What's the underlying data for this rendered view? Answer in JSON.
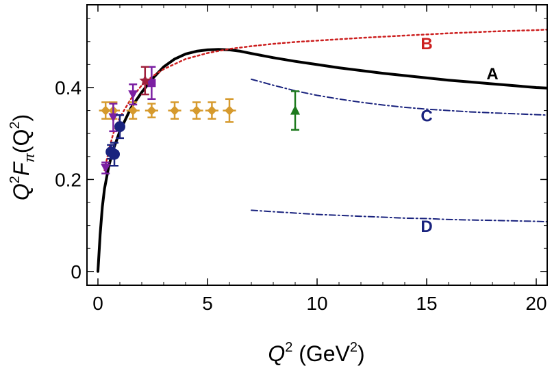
{
  "chart_data": {
    "type": "line",
    "xlabel": {
      "main": "Q",
      "sup": "2",
      "rest": " (GeV",
      "unit_sup": "2",
      "close": ")"
    },
    "ylabel": {
      "sup": "2",
      "f": "F",
      "sub": "π",
      "arg": "(Q",
      "arg_sup": "2",
      "close": ")"
    },
    "xlim": [
      -0.5,
      20.5
    ],
    "ylim": [
      -0.03,
      0.58
    ],
    "x_ticks": [
      0,
      5,
      10,
      15,
      20
    ],
    "x_tick_labels": [
      "0",
      "5",
      "10",
      "15",
      "20"
    ],
    "y_ticks": [
      0,
      0.2,
      0.4
    ],
    "y_tick_labels": [
      "0",
      "0.2",
      "0.4"
    ],
    "colors": {
      "A": "#000000",
      "B": "#cc1f1f",
      "C": "#1a237e",
      "D": "#1a237e",
      "gold": "#d69a2d",
      "purple": "#7b1fa2",
      "navy": "#1a237e",
      "darkred": "#a0203c",
      "green": "#1e7a1e"
    },
    "series": [
      {
        "name": "A",
        "style": "solid",
        "x": [
          0,
          0.1,
          0.2,
          0.3,
          0.5,
          0.7,
          1,
          1.5,
          2,
          2.5,
          3,
          3.5,
          4,
          4.5,
          5,
          5.5,
          6,
          6.5,
          7,
          8,
          9,
          10,
          11,
          12,
          13,
          14,
          15,
          16,
          17,
          18,
          19,
          20,
          20.5
        ],
        "y": [
          0,
          0.08,
          0.14,
          0.18,
          0.23,
          0.265,
          0.305,
          0.355,
          0.39,
          0.42,
          0.445,
          0.462,
          0.473,
          0.479,
          0.482,
          0.483,
          0.482,
          0.479,
          0.474,
          0.465,
          0.457,
          0.45,
          0.443,
          0.437,
          0.431,
          0.426,
          0.421,
          0.416,
          0.412,
          0.408,
          0.404,
          0.4,
          0.399
        ]
      },
      {
        "name": "B",
        "style": "dotted",
        "x": [
          0.3,
          0.5,
          0.7,
          1,
          1.5,
          2,
          2.5,
          3,
          4,
          5,
          6,
          7,
          8,
          9,
          10,
          12,
          14,
          16,
          18,
          20,
          20.5
        ],
        "y": [
          0.22,
          0.265,
          0.3,
          0.335,
          0.375,
          0.405,
          0.425,
          0.44,
          0.462,
          0.475,
          0.484,
          0.49,
          0.495,
          0.499,
          0.502,
          0.508,
          0.513,
          0.518,
          0.522,
          0.525,
          0.526
        ]
      },
      {
        "name": "C",
        "style": "dashdot",
        "x": [
          7,
          8,
          9,
          10,
          11,
          12,
          13,
          14,
          15,
          16,
          17,
          18,
          19,
          20,
          20.5
        ],
        "y": [
          0.418,
          0.405,
          0.393,
          0.383,
          0.375,
          0.368,
          0.362,
          0.357,
          0.353,
          0.35,
          0.347,
          0.345,
          0.343,
          0.341,
          0.34
        ]
      },
      {
        "name": "D",
        "style": "dashdot",
        "x": [
          7,
          8,
          9,
          10,
          11,
          12,
          13,
          14,
          15,
          16,
          17,
          18,
          19,
          20,
          20.5
        ],
        "y": [
          0.133,
          0.13,
          0.127,
          0.124,
          0.122,
          0.12,
          0.118,
          0.116,
          0.115,
          0.113,
          0.112,
          0.111,
          0.11,
          0.109,
          0.108
        ]
      }
    ],
    "curve_labels": [
      {
        "text": "A",
        "x": 18,
        "y": 0.43,
        "series": "A"
      },
      {
        "text": "B",
        "x": 15,
        "y": 0.495,
        "series": "B"
      },
      {
        "text": "C",
        "x": 15,
        "y": 0.338,
        "series": "C"
      },
      {
        "text": "D",
        "x": 15,
        "y": 0.098,
        "series": "D"
      }
    ],
    "data_points": [
      {
        "set": "gold-diamonds",
        "marker": "diamond",
        "color": "gold",
        "points": [
          {
            "x": 0.35,
            "y": 0.35,
            "err": 0.018,
            "xerr": 0.3
          },
          {
            "x": 0.7,
            "y": 0.35,
            "err": 0.018,
            "xerr": 0.3
          },
          {
            "x": 1.6,
            "y": 0.35,
            "err": 0.018,
            "xerr": 0.3
          },
          {
            "x": 2.45,
            "y": 0.35,
            "err": 0.015,
            "xerr": 0.3
          },
          {
            "x": 3.5,
            "y": 0.35,
            "err": 0.018,
            "xerr": 0.3
          },
          {
            "x": 4.5,
            "y": 0.35,
            "err": 0.018,
            "xerr": 0.3
          },
          {
            "x": 5.2,
            "y": 0.35,
            "err": 0.018,
            "xerr": 0.3
          },
          {
            "x": 6.0,
            "y": 0.35,
            "err": 0.025,
            "xerr": 0.3
          }
        ]
      },
      {
        "set": "purple-triangles-down",
        "marker": "triangle-down",
        "color": "purple",
        "points": [
          {
            "x": 0.35,
            "y": 0.225,
            "err": 0.012
          },
          {
            "x": 0.7,
            "y": 0.335,
            "err": 0.03
          },
          {
            "x": 1.6,
            "y": 0.385,
            "err": 0.022
          }
        ]
      },
      {
        "set": "purple-squares",
        "marker": "square",
        "color": "purple",
        "points": [
          {
            "x": 2.45,
            "y": 0.41,
            "err": 0.035
          }
        ]
      },
      {
        "set": "navy-circles",
        "marker": "circle",
        "color": "navy",
        "points": [
          {
            "x": 0.6,
            "y": 0.26,
            "err": 0.015
          },
          {
            "x": 0.75,
            "y": 0.255,
            "err": 0.025
          },
          {
            "x": 1.0,
            "y": 0.315,
            "err": 0.025
          }
        ]
      },
      {
        "set": "darkred-stars",
        "marker": "star",
        "color": "darkred",
        "points": [
          {
            "x": 2.15,
            "y": 0.415,
            "err": 0.03
          }
        ]
      },
      {
        "set": "green-triangle-up",
        "marker": "triangle-up",
        "color": "green",
        "points": [
          {
            "x": 9.0,
            "y": 0.35,
            "err": 0.042
          }
        ]
      }
    ]
  }
}
